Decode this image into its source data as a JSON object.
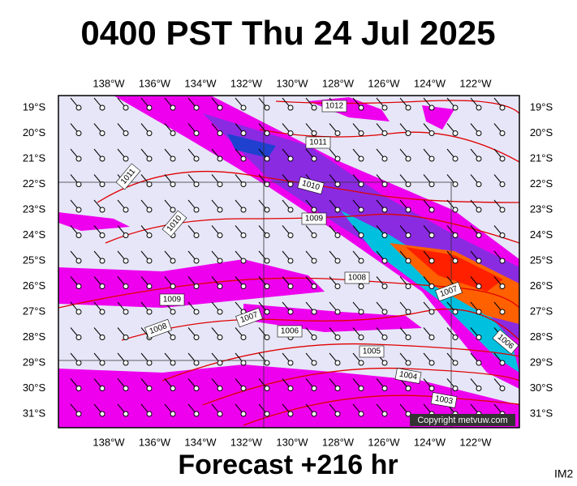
{
  "header": {
    "title": "0400 PST Thu 24 Jul 2025"
  },
  "map": {
    "longitudes": [
      "138°W",
      "136°W",
      "134°W",
      "132°W",
      "130°W",
      "128°W",
      "126°W",
      "124°W",
      "122°W"
    ],
    "latitudes": [
      "19°S",
      "20°S",
      "21°S",
      "22°S",
      "23°S",
      "24°S",
      "25°S",
      "26°S",
      "27°S",
      "28°S",
      "29°S",
      "30°S",
      "31°S"
    ],
    "isobar_labels": [
      1012,
      1011,
      1010,
      1009,
      1008,
      1007,
      1006,
      1006,
      1005,
      1004,
      1003,
      1009,
      1008,
      1007,
      1011,
      1010
    ],
    "copyright": "Copyright metvuw.com"
  },
  "footer": {
    "forecast": "Forecast +216 hr",
    "code": "IM2"
  }
}
